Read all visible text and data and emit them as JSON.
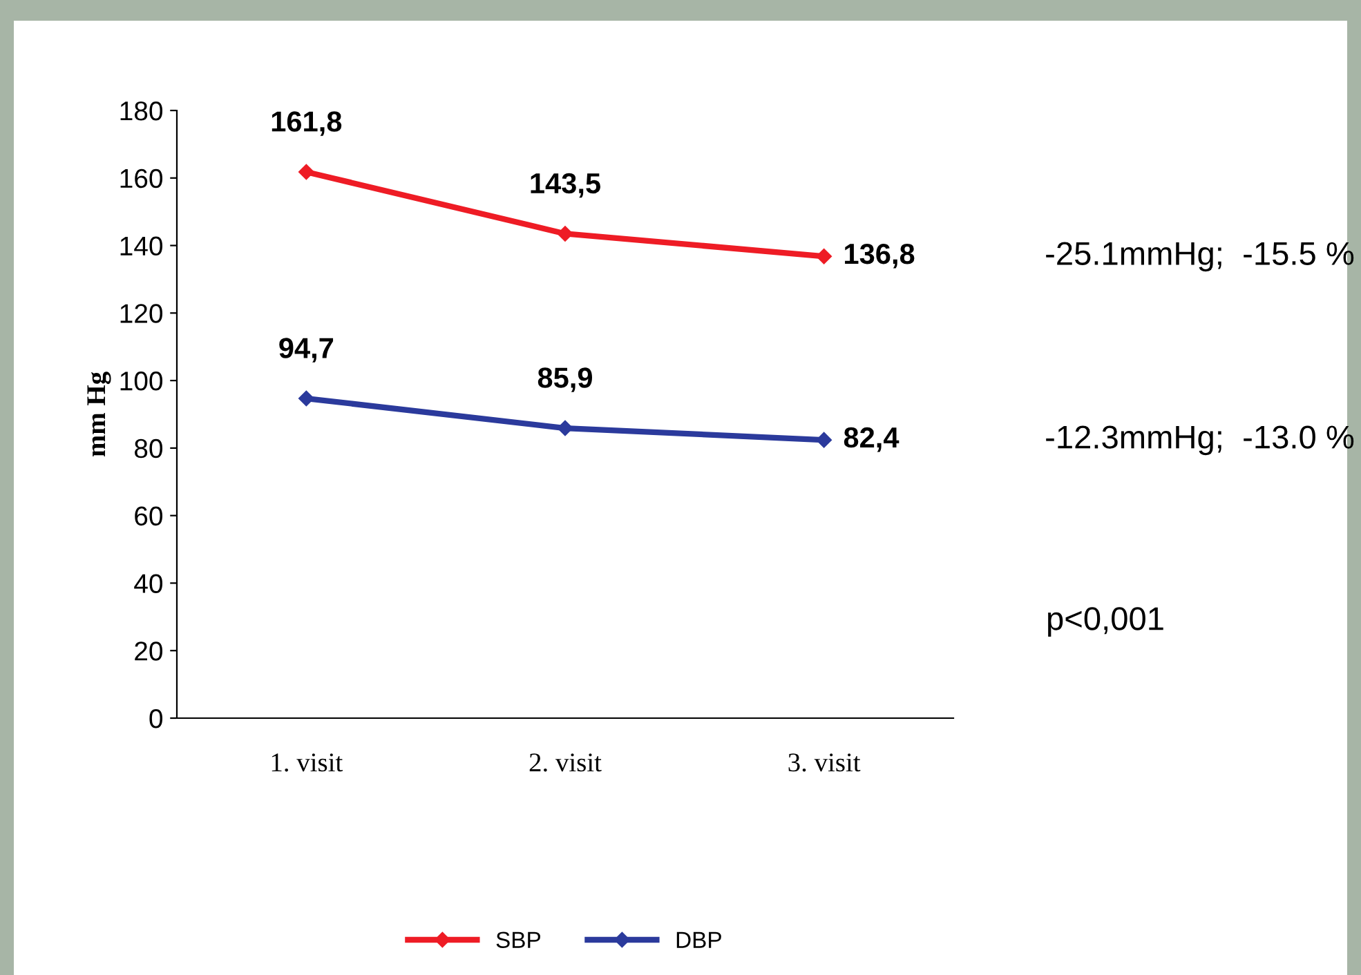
{
  "chart_data": {
    "type": "line",
    "ylabel": "mm Hg",
    "categories": [
      "1. visit",
      "2. visit",
      "3. visit"
    ],
    "series": [
      {
        "name": "SBP",
        "color": "#ee1c25",
        "values": [
          161.8,
          143.5,
          136.8
        ],
        "value_labels": [
          "161,8",
          "143,5",
          "136,8"
        ]
      },
      {
        "name": "DBP",
        "color": "#2b3a9c",
        "values": [
          94.7,
          85.9,
          82.4
        ],
        "value_labels": [
          "94,7",
          "85,9",
          "82,4"
        ]
      }
    ],
    "ylim": [
      0,
      180
    ],
    "yticks": [
      0,
      20,
      40,
      60,
      80,
      100,
      120,
      140,
      160,
      180
    ],
    "annotations": [
      "-25.1mmHg;  -15.5 %",
      "-12.3mmHg;  -13.0 %",
      "p<0,001"
    ],
    "legend": "bottom",
    "marker": "diamond",
    "line_style": "solid",
    "grid": false
  }
}
